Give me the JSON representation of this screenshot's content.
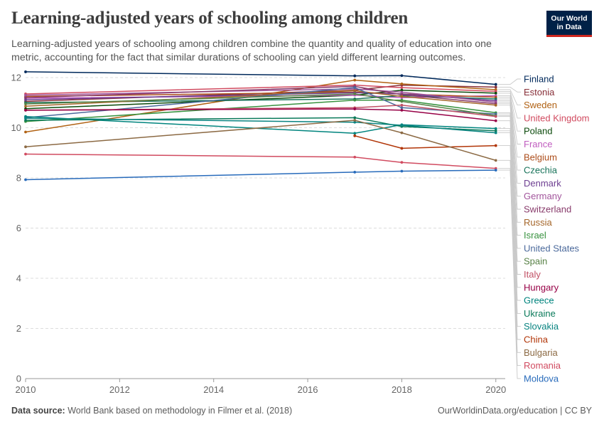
{
  "header": {
    "title": "Learning-adjusted years of schooling among children",
    "subtitle": "Learning-adjusted years of schooling among children combine the quantity and quality of education into one metric, accounting for the fact that similar durations of schooling can yield different learning outcomes."
  },
  "logo": {
    "line1": "Our World",
    "line2": "in Data",
    "bg_color": "#002147",
    "accent_color": "#ce261e"
  },
  "footer": {
    "source_label": "Data source:",
    "source_text": "World Bank based on methodology in Filmer et al. (2018)",
    "credit": "OurWorldinData.org/education | CC BY"
  },
  "chart_data": {
    "type": "line",
    "x_ticks": [
      2010,
      2012,
      2014,
      2016,
      2018,
      2020
    ],
    "y_ticks": [
      0,
      2,
      4,
      6,
      8,
      10,
      12
    ],
    "xlim": [
      2010,
      2020.2
    ],
    "ylim": [
      0,
      12.2
    ],
    "grid": "horizontal dashed",
    "legend": "right, labels at line ends",
    "series": [
      {
        "name": "Finland",
        "color": "#00295b",
        "x": [
          2010,
          2017,
          2018,
          2020
        ],
        "y": [
          12.23,
          12.07,
          12.08,
          11.73
        ]
      },
      {
        "name": "Estonia",
        "color": "#883039",
        "x": [
          2010,
          2017,
          2018,
          2020
        ],
        "y": [
          11.05,
          11.5,
          11.7,
          11.62
        ]
      },
      {
        "name": "Sweden",
        "color": "#b16214",
        "x": [
          2010,
          2017,
          2018,
          2020
        ],
        "y": [
          9.83,
          11.9,
          11.75,
          11.52
        ]
      },
      {
        "name": "United Kingdom",
        "color": "#d14b60",
        "x": [
          2010,
          2017,
          2018,
          2020
        ],
        "y": [
          11.35,
          11.7,
          11.6,
          11.45
        ]
      },
      {
        "name": "Poland",
        "color": "#0b4a0b",
        "x": [
          2010,
          2017,
          2018,
          2020
        ],
        "y": [
          10.76,
          11.3,
          11.5,
          11.38
        ]
      },
      {
        "name": "France",
        "color": "#c05cbf",
        "x": [
          2010,
          2017,
          2018,
          2020
        ],
        "y": [
          11.18,
          11.3,
          11.2,
          11.28
        ]
      },
      {
        "name": "Belgium",
        "color": "#ad4e1c",
        "x": [
          2010,
          2017,
          2018,
          2020
        ],
        "y": [
          11.25,
          11.42,
          11.35,
          11.22
        ]
      },
      {
        "name": "Czechia",
        "color": "#18735a",
        "x": [
          2010,
          2017,
          2018,
          2020
        ],
        "y": [
          11.0,
          11.15,
          11.28,
          11.15
        ]
      },
      {
        "name": "Denmark",
        "color": "#6d3e91",
        "x": [
          2010,
          2017,
          2018,
          2020
        ],
        "y": [
          11.12,
          11.4,
          11.35,
          11.08
        ]
      },
      {
        "name": "Germany",
        "color": "#a2559c",
        "x": [
          2010,
          2017,
          2018,
          2020
        ],
        "y": [
          11.3,
          11.55,
          11.42,
          11.02
        ]
      },
      {
        "name": "Switzerland",
        "color": "#883b6b",
        "x": [
          2010,
          2017,
          2018,
          2020
        ],
        "y": [
          11.2,
          11.65,
          11.32,
          10.96
        ]
      },
      {
        "name": "Russia",
        "color": "#a5662a",
        "x": [
          2010,
          2017,
          2018,
          2020
        ],
        "y": [
          10.86,
          11.48,
          11.25,
          10.9
        ]
      },
      {
        "name": "Israel",
        "color": "#38923f",
        "x": [
          2010,
          2017,
          2018,
          2020
        ],
        "y": [
          10.25,
          11.1,
          11.1,
          10.6
        ]
      },
      {
        "name": "United States",
        "color": "#4c6a9c",
        "x": [
          2010,
          2017,
          2018,
          2020
        ],
        "y": [
          10.4,
          11.6,
          10.8,
          10.55
        ]
      },
      {
        "name": "Spain",
        "color": "#578145",
        "x": [
          2010,
          2017,
          2018,
          2020
        ],
        "y": [
          10.95,
          11.35,
          11.05,
          10.48
        ]
      },
      {
        "name": "Italy",
        "color": "#c15065",
        "x": [
          2010,
          2017,
          2018,
          2020
        ],
        "y": [
          10.7,
          10.8,
          10.9,
          10.45
        ]
      },
      {
        "name": "Hungary",
        "color": "#970046",
        "x": [
          2010,
          2017,
          2018,
          2020
        ],
        "y": [
          10.7,
          10.75,
          10.7,
          10.28
        ]
      },
      {
        "name": "Greece",
        "color": "#00847e",
        "x": [
          2010,
          2017,
          2018,
          2020
        ],
        "y": [
          10.45,
          9.78,
          10.12,
          9.97
        ]
      },
      {
        "name": "Ukraine",
        "color": "#0a7a5a",
        "x": [
          2010,
          2017,
          2018,
          2020
        ],
        "y": [
          10.3,
          10.4,
          10.05,
          9.88
        ]
      },
      {
        "name": "Slovakia",
        "color": "#098481",
        "x": [
          2010,
          2017,
          2018,
          2020
        ],
        "y": [
          10.38,
          10.22,
          10.1,
          9.8
        ]
      },
      {
        "name": "China",
        "color": "#b13507",
        "x": [
          2017,
          2018,
          2020
        ],
        "y": [
          9.68,
          9.18,
          9.29
        ]
      },
      {
        "name": "Bulgaria",
        "color": "#8c6a44",
        "x": [
          2010,
          2017,
          2018,
          2020
        ],
        "y": [
          9.24,
          10.3,
          9.8,
          8.7
        ]
      },
      {
        "name": "Romania",
        "color": "#d14b60",
        "x": [
          2010,
          2017,
          2018,
          2020
        ],
        "y": [
          8.95,
          8.83,
          8.62,
          8.38
        ]
      },
      {
        "name": "Moldova",
        "color": "#286bbb",
        "x": [
          2010,
          2017,
          2018,
          2020
        ],
        "y": [
          7.93,
          8.23,
          8.27,
          8.31
        ]
      }
    ]
  }
}
